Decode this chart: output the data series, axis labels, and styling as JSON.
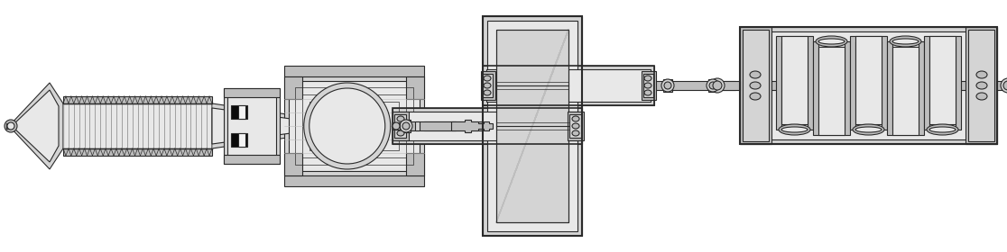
{
  "bg_color": "#ffffff",
  "outline_color": "#2a2a2a",
  "fill_light": "#d4d4d4",
  "fill_mid": "#bebebe",
  "fill_dark": "#a0a0a0",
  "fill_lighter": "#e8e8e8",
  "fill_white": "#f4f4f4",
  "black": "#0a0a0a",
  "fig_width": 11.16,
  "fig_height": 2.8,
  "dpi": 100
}
